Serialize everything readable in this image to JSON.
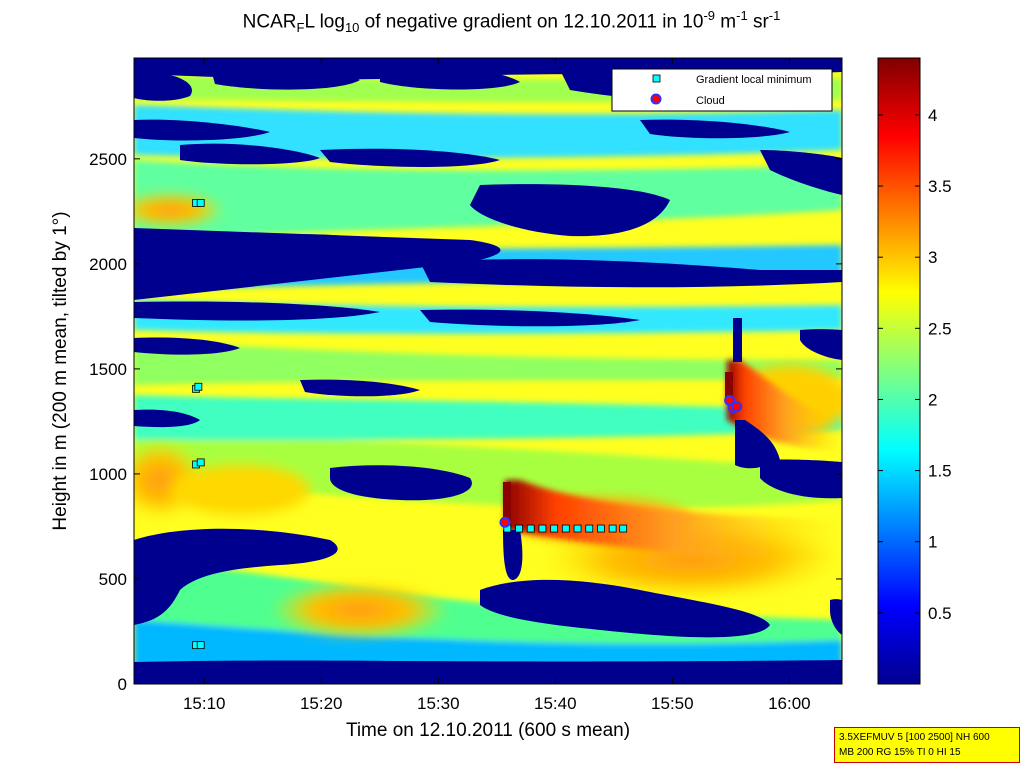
{
  "chart_data": {
    "type": "heatmap",
    "title": {
      "pre": "NCAR",
      "sub1": "F",
      "mid1": "L log",
      "sub2": "10",
      "mid2": " of negative gradient on 12.10.2011 in 10",
      "sup1": "-9",
      "mid3": " m",
      "sup2": "-1",
      "mid4": " sr",
      "sup3": "-1"
    },
    "xlabel": "Time on 12.10.2011 (600 s mean)",
    "ylabel": "Height in m (200 m mean, tilted by 1°)",
    "x_range_minutes": [
      904.0,
      964.5
    ],
    "x_ticks": [
      {
        "label": "15:10",
        "value": 910
      },
      {
        "label": "15:20",
        "value": 920
      },
      {
        "label": "15:30",
        "value": 930
      },
      {
        "label": "15:40",
        "value": 940
      },
      {
        "label": "15:50",
        "value": 950
      },
      {
        "label": "16:00",
        "value": 960
      }
    ],
    "ylim": [
      0,
      2980
    ],
    "y_ticks": [
      "0",
      "500",
      "1000",
      "1500",
      "2000",
      "2500"
    ],
    "colorbar": {
      "range": [
        0,
        4.4
      ],
      "ticks": [
        "0.5",
        "1",
        "1.5",
        "2",
        "2.5",
        "3",
        "3.5",
        "4"
      ],
      "colormap": "jet"
    },
    "legend": {
      "position": "top-right",
      "entries": [
        {
          "label": "Gradient local minimum",
          "marker": "square",
          "color": "#00ffff"
        },
        {
          "label": "Cloud",
          "marker": "circle",
          "color": "#ff0000"
        }
      ]
    },
    "gradient_local_minimum": [
      {
        "x": 909.3,
        "y": 185
      },
      {
        "x": 909.7,
        "y": 185
      },
      {
        "x": 909.3,
        "y": 1045
      },
      {
        "x": 909.7,
        "y": 1055
      },
      {
        "x": 909.3,
        "y": 1405
      },
      {
        "x": 909.5,
        "y": 1415
      },
      {
        "x": 909.3,
        "y": 2290
      },
      {
        "x": 909.7,
        "y": 2290
      },
      {
        "x": 935.9,
        "y": 740
      },
      {
        "x": 936.9,
        "y": 740
      },
      {
        "x": 937.9,
        "y": 740
      },
      {
        "x": 938.9,
        "y": 740
      },
      {
        "x": 939.9,
        "y": 740
      },
      {
        "x": 940.9,
        "y": 740
      },
      {
        "x": 941.9,
        "y": 740
      },
      {
        "x": 942.9,
        "y": 740
      },
      {
        "x": 943.9,
        "y": 740
      },
      {
        "x": 944.9,
        "y": 740
      },
      {
        "x": 945.8,
        "y": 740
      }
    ],
    "cloud": [
      {
        "x": 935.7,
        "y": 770
      },
      {
        "x": 954.9,
        "y": 1350
      },
      {
        "x": 955.2,
        "y": 1315
      },
      {
        "x": 955.5,
        "y": 1320
      }
    ]
  },
  "info_box": {
    "line1": "3.5XEFMUV 5 [100 2500] NH 600",
    "line2": "MB 200 RG 15% TI 0 HI 15"
  }
}
